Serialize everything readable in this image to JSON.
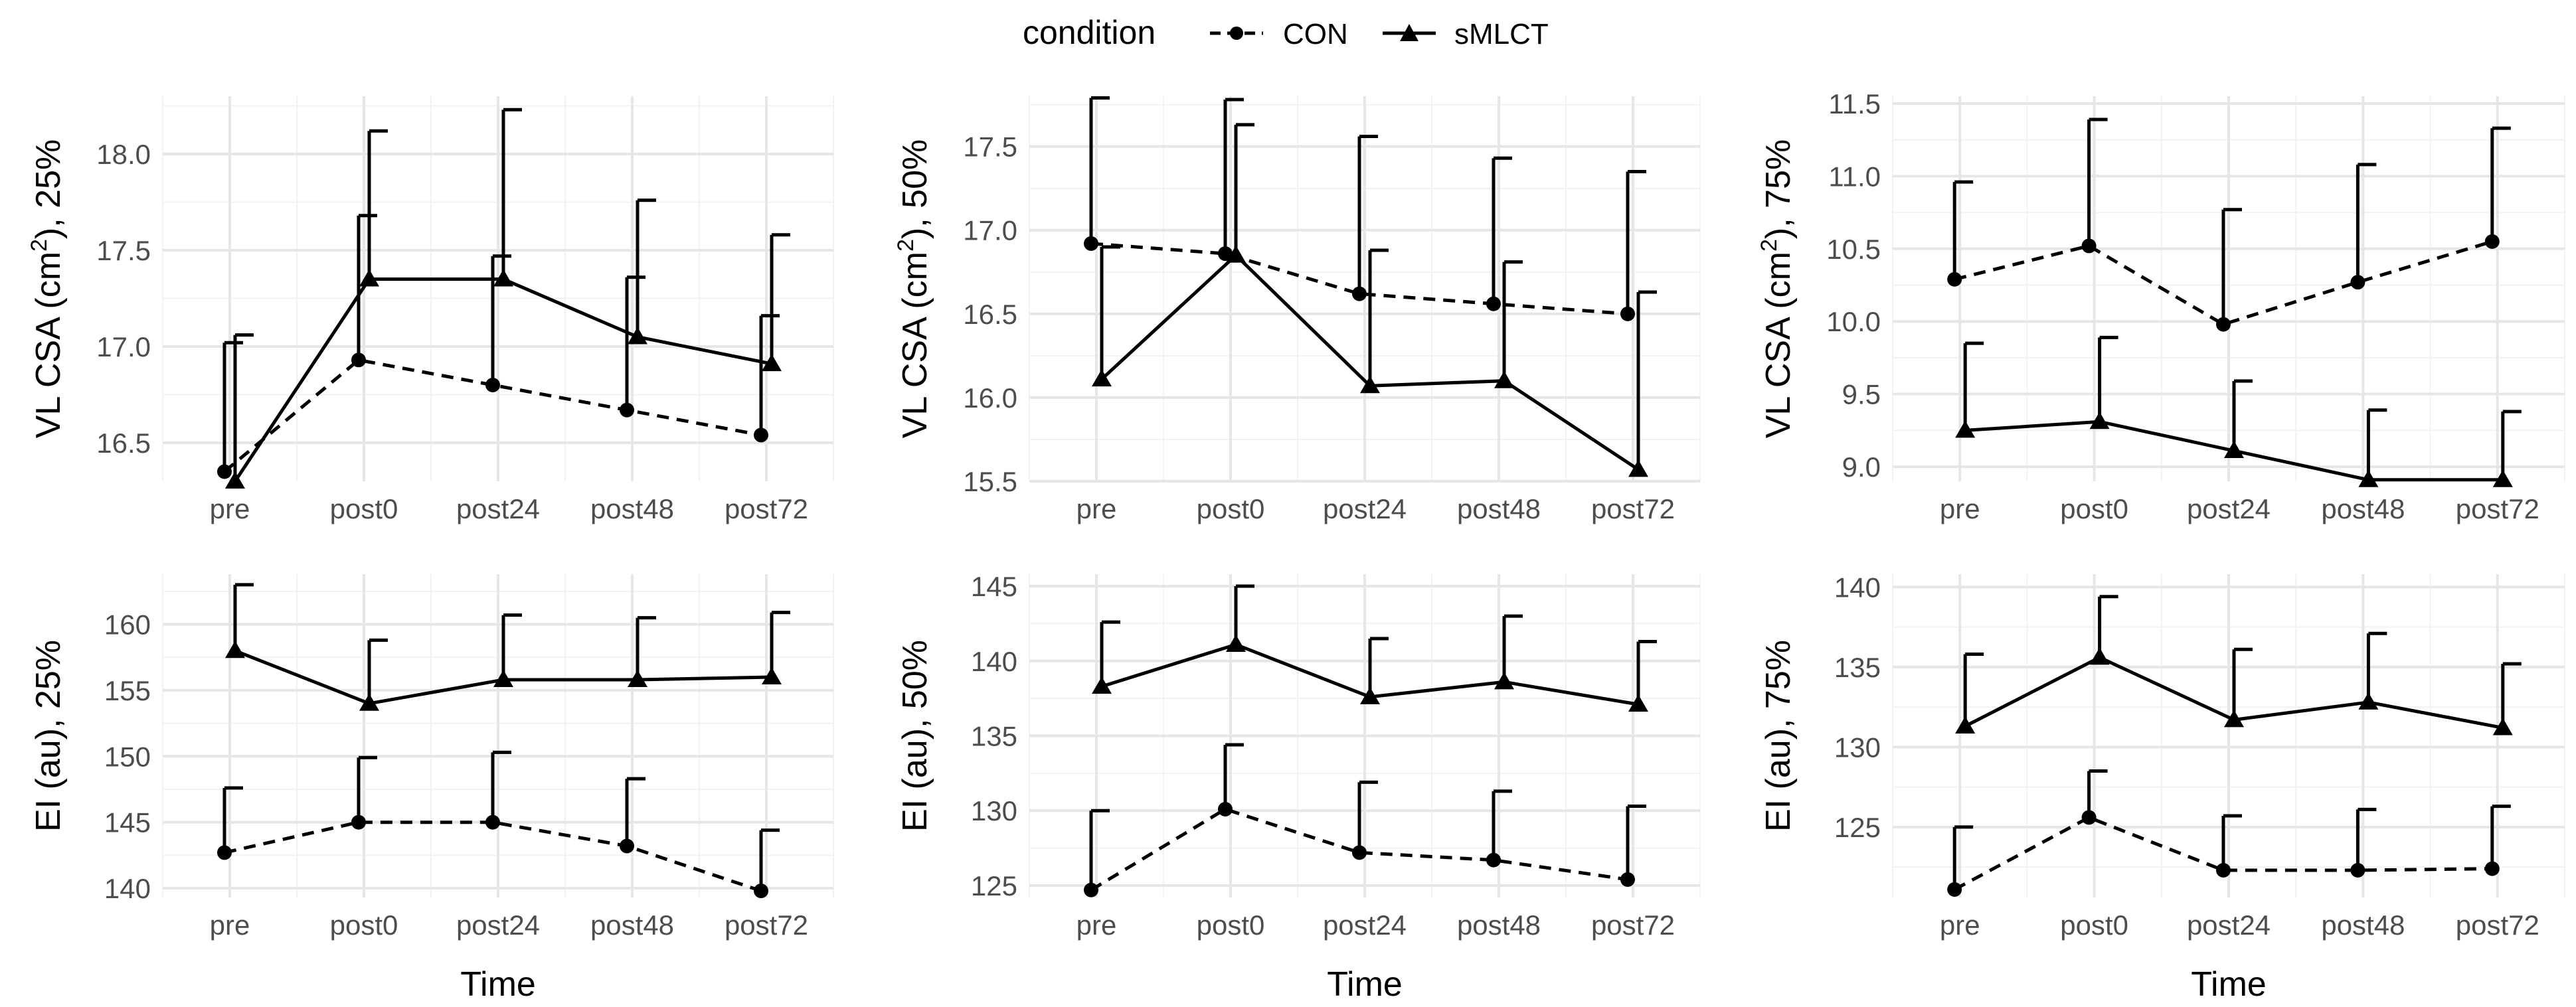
{
  "legend": {
    "title": "condition",
    "entries": [
      {
        "name": "CON",
        "line": "dashed",
        "marker": "circle"
      },
      {
        "name": "sMLCT",
        "line": "solid",
        "marker": "triangle"
      }
    ]
  },
  "colors": {
    "ink": "#000000",
    "grid_major": "#e6e6e6",
    "grid_minor": "#f2f2f2",
    "tick_text": "#4d4d4d",
    "background": "#ffffff"
  },
  "chart_data": [
    {
      "id": "vl-25",
      "type": "line",
      "ylabel_pre": "VL CSA (cm",
      "ylabel_sup": "2",
      "ylabel_post": "), 25%",
      "xlabel": "",
      "categories": [
        "pre",
        "post0",
        "post24",
        "post48",
        "post72"
      ],
      "ylim": [
        16.3,
        18.3
      ],
      "yticks": [
        16.5,
        17.0,
        17.5,
        18.0
      ],
      "ytick_labels": [
        "16.5",
        "17.0",
        "17.5",
        "18.0"
      ],
      "series": [
        {
          "name": "CON",
          "values": [
            16.35,
            16.93,
            16.8,
            16.67,
            16.54
          ],
          "err_upper": [
            17.02,
            17.68,
            17.47,
            17.36,
            17.16
          ]
        },
        {
          "name": "sMLCT",
          "values": [
            16.3,
            17.35,
            17.35,
            17.05,
            16.91
          ],
          "err_upper": [
            17.06,
            18.12,
            18.23,
            17.76,
            17.58
          ]
        }
      ]
    },
    {
      "id": "vl-50",
      "type": "line",
      "ylabel_pre": "VL CSA (cm",
      "ylabel_sup": "2",
      "ylabel_post": "), 50%",
      "xlabel": "",
      "categories": [
        "pre",
        "post0",
        "post24",
        "post48",
        "post72"
      ],
      "ylim": [
        15.5,
        17.8
      ],
      "yticks": [
        15.5,
        16.0,
        16.5,
        17.0,
        17.5
      ],
      "ytick_labels": [
        "15.5",
        "16.0",
        "16.5",
        "17.0",
        "17.5"
      ],
      "series": [
        {
          "name": "CON",
          "values": [
            16.92,
            16.86,
            16.62,
            16.56,
            16.5
          ],
          "err_upper": [
            17.79,
            17.78,
            17.56,
            17.43,
            17.35
          ]
        },
        {
          "name": "sMLCT",
          "values": [
            16.11,
            16.85,
            16.07,
            16.1,
            15.57
          ],
          "err_upper": [
            16.9,
            17.63,
            16.88,
            16.81,
            16.63
          ]
        }
      ]
    },
    {
      "id": "vl-75",
      "type": "line",
      "ylabel_pre": "VL CSA (cm",
      "ylabel_sup": "2",
      "ylabel_post": "), 75%",
      "xlabel": "",
      "categories": [
        "pre",
        "post0",
        "post24",
        "post48",
        "post72"
      ],
      "ylim": [
        8.9,
        11.55
      ],
      "yticks": [
        9.0,
        9.5,
        10.0,
        10.5,
        11.0,
        11.5
      ],
      "ytick_labels": [
        "9.0",
        "9.5",
        "10.0",
        "10.5",
        "11.0",
        "11.5"
      ],
      "series": [
        {
          "name": "CON",
          "values": [
            10.29,
            10.52,
            9.98,
            10.27,
            10.55
          ],
          "err_upper": [
            10.96,
            11.39,
            10.77,
            11.08,
            11.33
          ]
        },
        {
          "name": "sMLCT",
          "values": [
            9.25,
            9.31,
            9.11,
            8.91,
            8.91
          ],
          "err_upper": [
            9.85,
            9.89,
            9.59,
            9.39,
            9.38
          ]
        }
      ]
    },
    {
      "id": "ei-25",
      "type": "line",
      "ylabel_pre": "EI (au), 25%",
      "ylabel_sup": "",
      "ylabel_post": "",
      "xlabel": "Time",
      "categories": [
        "pre",
        "post0",
        "post24",
        "post48",
        "post72"
      ],
      "ylim": [
        139.3,
        163.8
      ],
      "yticks": [
        140,
        145,
        150,
        155,
        160
      ],
      "ytick_labels": [
        "140",
        "145",
        "150",
        "155",
        "160"
      ],
      "series": [
        {
          "name": "CON",
          "values": [
            142.7,
            145.0,
            145.0,
            143.2,
            139.8
          ],
          "err_upper": [
            147.6,
            149.9,
            150.3,
            148.3,
            144.4
          ]
        },
        {
          "name": "sMLCT",
          "values": [
            158.0,
            154.0,
            155.8,
            155.8,
            156.0
          ],
          "err_upper": [
            163.0,
            158.8,
            160.7,
            160.5,
            160.9
          ]
        }
      ]
    },
    {
      "id": "ei-50",
      "type": "line",
      "ylabel_pre": "EI (au), 50%",
      "ylabel_sup": "",
      "ylabel_post": "",
      "xlabel": "Time",
      "categories": [
        "pre",
        "post0",
        "post24",
        "post48",
        "post72"
      ],
      "ylim": [
        124.2,
        145.8
      ],
      "yticks": [
        125,
        130,
        135,
        140,
        145
      ],
      "ytick_labels": [
        "125",
        "130",
        "135",
        "140",
        "145"
      ],
      "series": [
        {
          "name": "CON",
          "values": [
            124.7,
            130.1,
            127.2,
            126.7,
            125.4
          ],
          "err_upper": [
            130.0,
            134.4,
            131.9,
            131.3,
            130.3
          ]
        },
        {
          "name": "sMLCT",
          "values": [
            138.3,
            141.1,
            137.6,
            138.6,
            137.1
          ],
          "err_upper": [
            142.6,
            145.0,
            141.5,
            143.0,
            141.3
          ]
        }
      ]
    },
    {
      "id": "ei-75",
      "type": "line",
      "ylabel_pre": "EI (au), 75%",
      "ylabel_sup": "",
      "ylabel_post": "",
      "xlabel": "Time",
      "categories": [
        "pre",
        "post0",
        "post24",
        "post48",
        "post72"
      ],
      "ylim": [
        120.6,
        140.8
      ],
      "yticks": [
        125,
        130,
        135,
        140
      ],
      "ytick_labels": [
        "125",
        "130",
        "135",
        "140"
      ],
      "series": [
        {
          "name": "CON",
          "values": [
            121.1,
            125.6,
            122.3,
            122.3,
            122.4
          ],
          "err_upper": [
            125.0,
            128.5,
            125.7,
            126.1,
            126.3
          ]
        },
        {
          "name": "sMLCT",
          "values": [
            131.3,
            135.6,
            131.7,
            132.8,
            131.2
          ],
          "err_upper": [
            135.8,
            139.4,
            136.1,
            137.1,
            135.2
          ]
        }
      ]
    }
  ]
}
